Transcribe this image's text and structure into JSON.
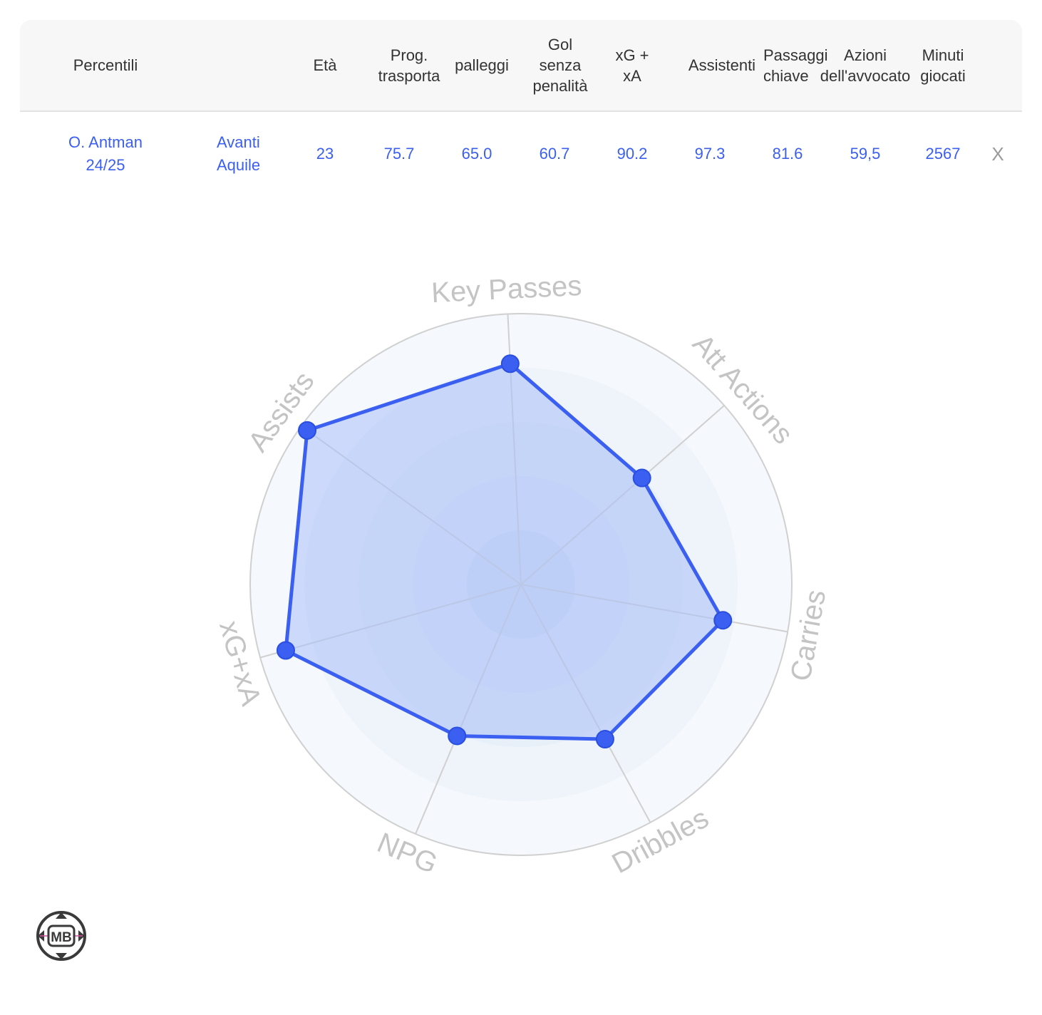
{
  "table": {
    "headers": [
      "Percentili",
      "",
      "Età",
      "Prog.\ntrasporta",
      "palleggi",
      "Gol\nsenza\npenalità",
      "xG +\nxA",
      "Assistenti",
      "Passaggi\nchiave",
      "Azioni\ndell'avvocato",
      "Minuti\ngiocati"
    ],
    "row": {
      "player": "O. Antman\n24/25",
      "team": "Avanti\nAquile",
      "values": [
        "23",
        "75.7",
        "65.0",
        "60.7",
        "90.2",
        "97.3",
        "81.6",
        "59,5",
        "2567"
      ],
      "remove_label": "X"
    }
  },
  "chart_data": {
    "type": "radar",
    "axes": [
      "Key Passes",
      "Att Actions",
      "Carries",
      "Dribbles",
      "NPG",
      "xG+xA",
      "Assists"
    ],
    "series": [
      {
        "values": [
          81.6,
          59.5,
          75.7,
          65.0,
          60.7,
          90.2,
          97.3
        ]
      }
    ],
    "range": [
      0,
      100
    ],
    "rings": 5,
    "colors": {
      "line": "#3b5ff0",
      "fill": "#a9bff7",
      "grid": "#d0d0d0",
      "label": "#c4c4c4"
    }
  },
  "logo": {
    "text": "MB"
  }
}
